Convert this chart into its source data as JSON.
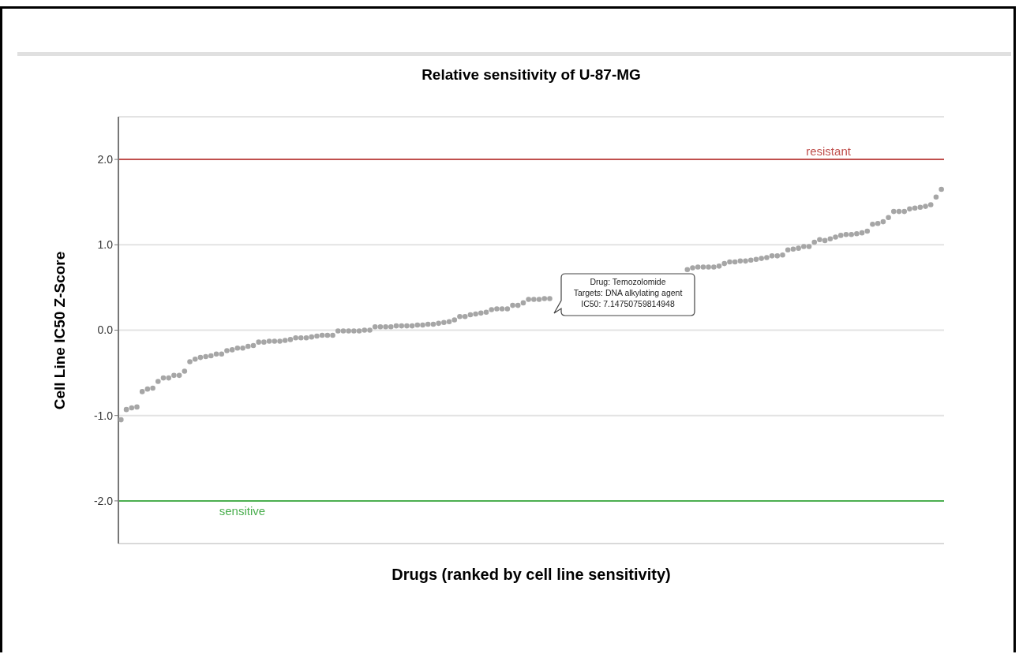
{
  "chart_data": {
    "type": "scatter",
    "title": "Relative sensitivity of U-87-MG",
    "xlabel": "Drugs (ranked by cell line sensitivity)",
    "ylabel": "Cell Line IC50 Z-Score",
    "categories": [
      null,
      null,
      null,
      null,
      null,
      null,
      null,
      null,
      null,
      null,
      null,
      null,
      null,
      null,
      null,
      null,
      null,
      null,
      null,
      null,
      null,
      null,
      null,
      null,
      null,
      null,
      null,
      null,
      null,
      null,
      null,
      null,
      null,
      null,
      null,
      null,
      null,
      null,
      null,
      null,
      null,
      null,
      null,
      null,
      null,
      null,
      null,
      null,
      null,
      null,
      null,
      null,
      null,
      null,
      null,
      null,
      null,
      null,
      null,
      null,
      null,
      null,
      null,
      null,
      null,
      null,
      null,
      null,
      null,
      null,
      null,
      null,
      null,
      null,
      null,
      null,
      null,
      null,
      null,
      null,
      null,
      null,
      null,
      null,
      null,
      null,
      null,
      null,
      null,
      null,
      null,
      null,
      null,
      null,
      null,
      null,
      null,
      null,
      null,
      null,
      null,
      null,
      null,
      null,
      null,
      null,
      null,
      null,
      null,
      null,
      null,
      null,
      null,
      null,
      null,
      null,
      null,
      null,
      null,
      null,
      null,
      null,
      null,
      null,
      null,
      null,
      null,
      null,
      null,
      null,
      null,
      null,
      null,
      null,
      null,
      null,
      null,
      null,
      null,
      null,
      null,
      null,
      null,
      null,
      null,
      null,
      null,
      null,
      null,
      null,
      null,
      null,
      null,
      null,
      null,
      null
    ],
    "series": [
      {
        "color": "#a6a6a6",
        "values": [
          -1.05,
          -0.93,
          -0.91,
          -0.9,
          -0.72,
          -0.69,
          -0.68,
          -0.6,
          -0.56,
          -0.56,
          -0.53,
          -0.53,
          -0.48,
          -0.37,
          -0.34,
          -0.32,
          -0.31,
          -0.3,
          -0.28,
          -0.28,
          -0.24,
          -0.23,
          -0.21,
          -0.21,
          -0.19,
          -0.18,
          -0.14,
          -0.14,
          -0.13,
          -0.13,
          -0.13,
          -0.12,
          -0.11,
          -0.09,
          -0.09,
          -0.09,
          -0.08,
          -0.07,
          -0.06,
          -0.06,
          -0.06,
          -0.01,
          -0.01,
          -0.01,
          -0.01,
          -0.01,
          0.0,
          0.0,
          0.04,
          0.04,
          0.04,
          0.04,
          0.05,
          0.05,
          0.05,
          0.05,
          0.06,
          0.06,
          0.07,
          0.07,
          0.08,
          0.09,
          0.1,
          0.12,
          0.16,
          0.16,
          0.18,
          0.19,
          0.2,
          0.21,
          0.24,
          0.25,
          0.25,
          0.25,
          0.29,
          0.29,
          0.32,
          0.36,
          0.36,
          0.36,
          0.37,
          0.37,
          null,
          null,
          null,
          null,
          null,
          null,
          null,
          null,
          null,
          null,
          null,
          null,
          null,
          null,
          null,
          null,
          null,
          null,
          null,
          null,
          null,
          null,
          null,
          null,
          null,
          0.71,
          0.73,
          0.74,
          0.74,
          0.74,
          0.74,
          0.75,
          0.78,
          0.8,
          0.8,
          0.81,
          0.81,
          0.82,
          0.83,
          0.84,
          0.85,
          0.87,
          0.87,
          0.88,
          0.94,
          0.95,
          0.96,
          0.98,
          0.98,
          1.03,
          1.06,
          1.05,
          1.07,
          1.09,
          1.11,
          1.12,
          1.12,
          1.13,
          1.14,
          1.16,
          1.24,
          1.25,
          1.27,
          1.32,
          1.39,
          1.39,
          1.39,
          1.42,
          1.43,
          1.44,
          1.45,
          1.47,
          1.56,
          1.65
        ]
      }
    ],
    "marker": "circle",
    "ylim": [
      -2.5,
      2.5
    ],
    "yticks": [
      {
        "value": -2,
        "label": "-2.0"
      },
      {
        "value": -1,
        "label": "-1.0"
      },
      {
        "value": 0,
        "label": "0.0"
      },
      {
        "value": 1,
        "label": "1.0"
      },
      {
        "value": 2,
        "label": "2.0"
      }
    ],
    "grid": "y",
    "ref_lines": [
      {
        "axis": "y",
        "value": 2,
        "label": "resistant",
        "color": "#c0504d"
      },
      {
        "axis": "y",
        "value": -2,
        "label": "sensitive",
        "color": "#4caf50"
      }
    ],
    "annotations": [
      "Drug: Temozolomide\nTargets: DNA alkylating agent\nIC50: 7.14750759814948"
    ]
  }
}
